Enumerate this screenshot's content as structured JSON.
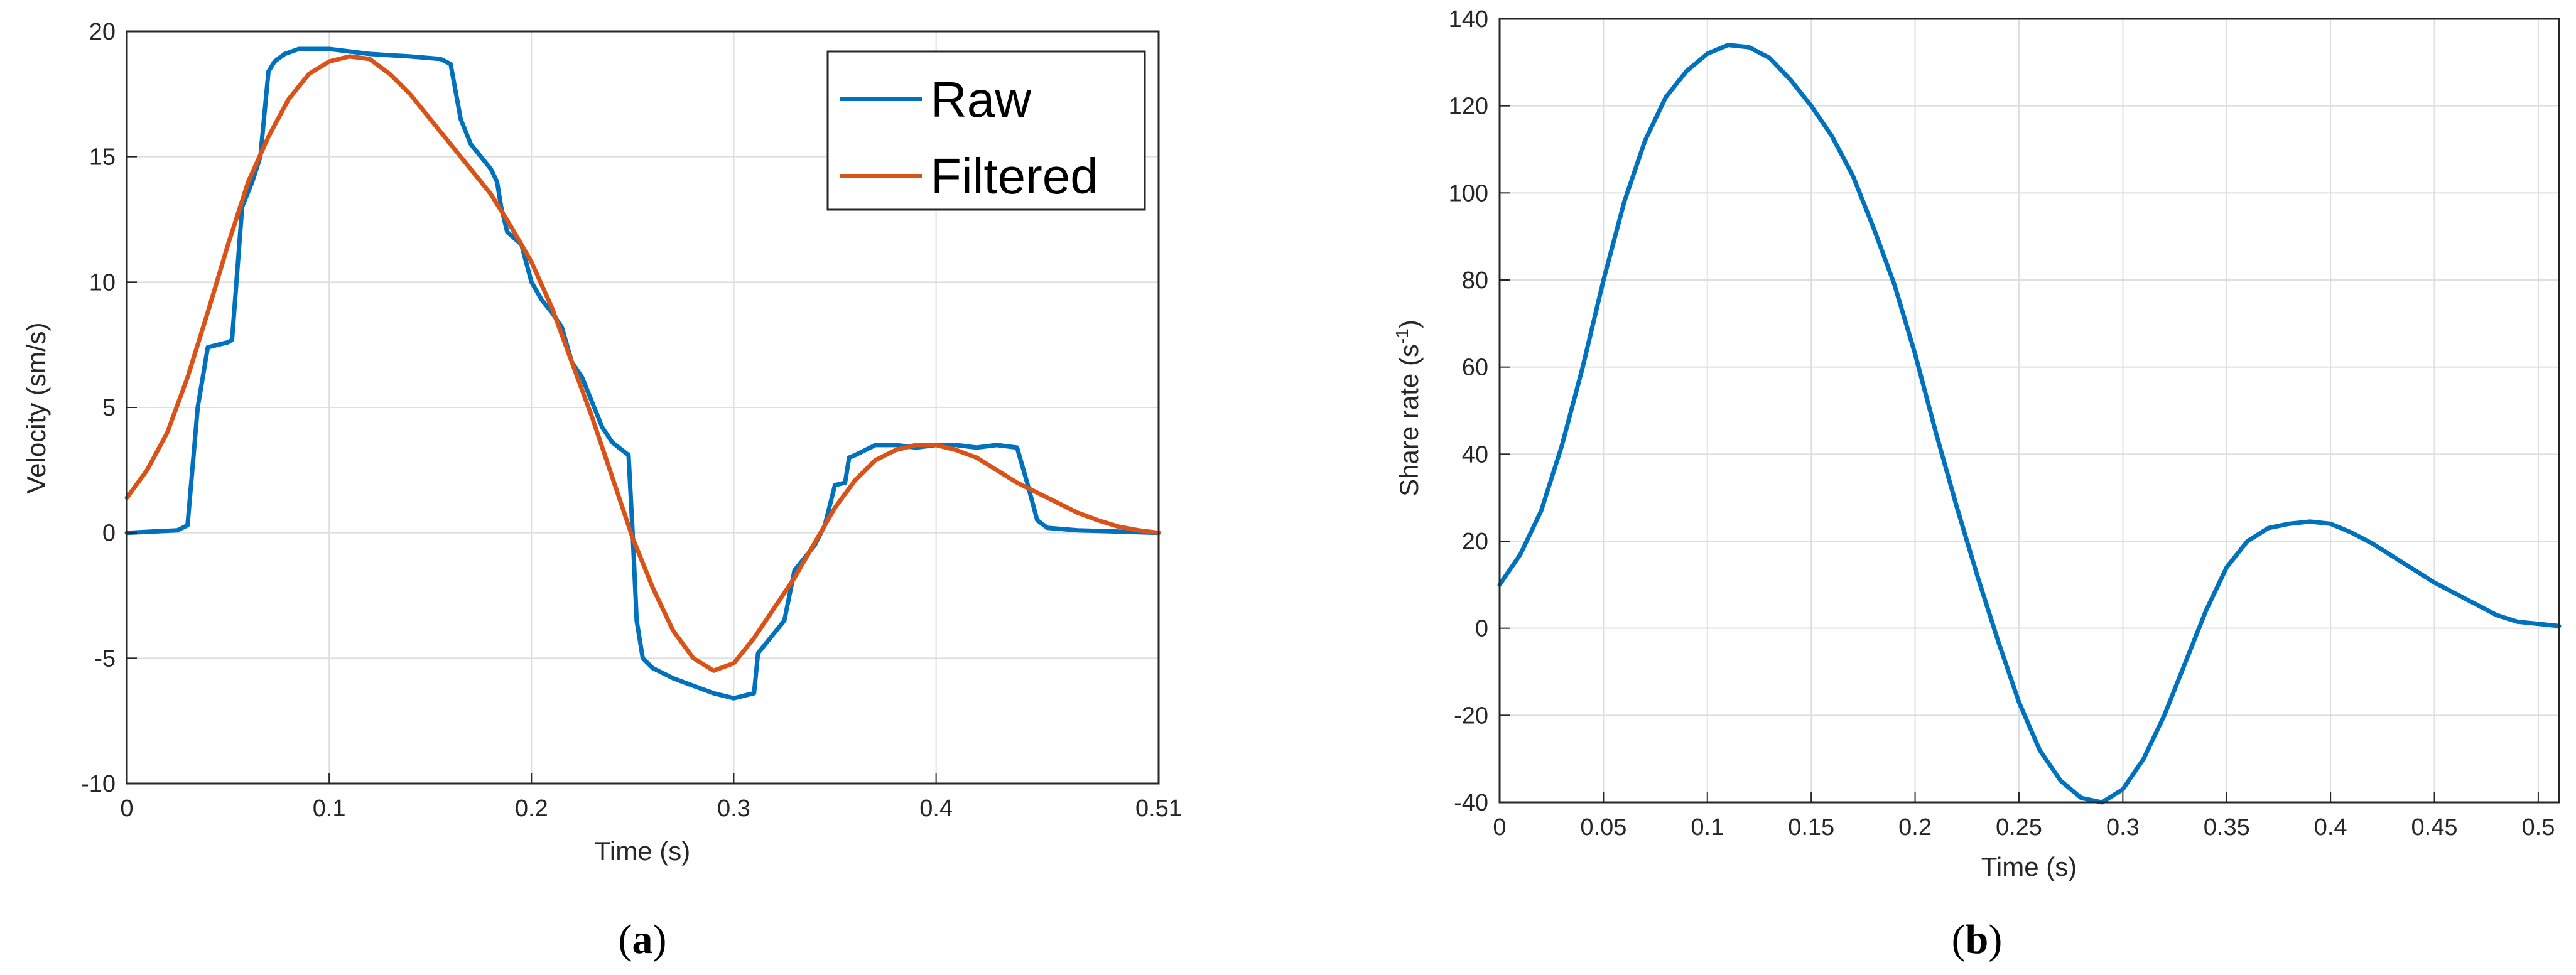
{
  "chart_data": [
    {
      "type": "line",
      "panel": "a",
      "caption_prefix": "(",
      "caption_letter": "a",
      "caption_suffix": ")",
      "title": "",
      "xlabel": "Time (s)",
      "ylabel": "Velocity (sm/s)",
      "xlim": [
        0,
        0.51
      ],
      "ylim": [
        -10,
        20
      ],
      "xticks": [
        0,
        0.1,
        0.2,
        0.3,
        0.4,
        0.51
      ],
      "xtick_labels": [
        "0",
        "0.1",
        "0.2",
        "0.3",
        "0.4",
        "0.51"
      ],
      "yticks": [
        -10,
        -5,
        0,
        5,
        10,
        15,
        20
      ],
      "ytick_labels": [
        "-10",
        "-5",
        "0",
        "5",
        "10",
        "15",
        "20"
      ],
      "grid": true,
      "legend_position": "top-right",
      "series": [
        {
          "name": "Raw",
          "color": "#0072BD",
          "points": [
            [
              0,
              0
            ],
            [
              0.025,
              0.1
            ],
            [
              0.03,
              0.3
            ],
            [
              0.035,
              5
            ],
            [
              0.04,
              7.4
            ],
            [
              0.045,
              7.5
            ],
            [
              0.05,
              7.6
            ],
            [
              0.052,
              7.7
            ],
            [
              0.057,
              13
            ],
            [
              0.062,
              14
            ],
            [
              0.066,
              15
            ],
            [
              0.07,
              18.4
            ],
            [
              0.073,
              18.8
            ],
            [
              0.078,
              19.1
            ],
            [
              0.085,
              19.3
            ],
            [
              0.1,
              19.3
            ],
            [
              0.12,
              19.1
            ],
            [
              0.14,
              19
            ],
            [
              0.155,
              18.9
            ],
            [
              0.16,
              18.7
            ],
            [
              0.165,
              16.5
            ],
            [
              0.17,
              15.5
            ],
            [
              0.175,
              15
            ],
            [
              0.18,
              14.5
            ],
            [
              0.183,
              14
            ],
            [
              0.185,
              13
            ],
            [
              0.188,
              12
            ],
            [
              0.195,
              11.5
            ],
            [
              0.2,
              10
            ],
            [
              0.205,
              9.3
            ],
            [
              0.21,
              8.8
            ],
            [
              0.215,
              8.2
            ],
            [
              0.22,
              6.8
            ],
            [
              0.225,
              6.2
            ],
            [
              0.23,
              5.2
            ],
            [
              0.235,
              4.2
            ],
            [
              0.24,
              3.6
            ],
            [
              0.248,
              3.1
            ],
            [
              0.25,
              0
            ],
            [
              0.252,
              -3.5
            ],
            [
              0.255,
              -5
            ],
            [
              0.26,
              -5.4
            ],
            [
              0.27,
              -5.8
            ],
            [
              0.28,
              -6.1
            ],
            [
              0.29,
              -6.4
            ],
            [
              0.3,
              -6.6
            ],
            [
              0.31,
              -6.4
            ],
            [
              0.312,
              -4.8
            ],
            [
              0.32,
              -4
            ],
            [
              0.325,
              -3.5
            ],
            [
              0.33,
              -1.5
            ],
            [
              0.34,
              -0.5
            ],
            [
              0.345,
              0.3
            ],
            [
              0.35,
              1.9
            ],
            [
              0.355,
              2
            ],
            [
              0.357,
              3
            ],
            [
              0.36,
              3.1
            ],
            [
              0.37,
              3.5
            ],
            [
              0.38,
              3.5
            ],
            [
              0.39,
              3.4
            ],
            [
              0.4,
              3.5
            ],
            [
              0.41,
              3.5
            ],
            [
              0.42,
              3.4
            ],
            [
              0.43,
              3.5
            ],
            [
              0.44,
              3.4
            ],
            [
              0.445,
              2
            ],
            [
              0.45,
              0.5
            ],
            [
              0.455,
              0.2
            ],
            [
              0.47,
              0.1
            ],
            [
              0.49,
              0.05
            ],
            [
              0.51,
              0
            ]
          ]
        },
        {
          "name": "Filtered",
          "color": "#D95319",
          "points": [
            [
              0,
              1.4
            ],
            [
              0.01,
              2.5
            ],
            [
              0.02,
              4
            ],
            [
              0.03,
              6.2
            ],
            [
              0.04,
              8.8
            ],
            [
              0.05,
              11.5
            ],
            [
              0.06,
              14
            ],
            [
              0.07,
              15.8
            ],
            [
              0.08,
              17.3
            ],
            [
              0.09,
              18.3
            ],
            [
              0.1,
              18.8
            ],
            [
              0.11,
              19
            ],
            [
              0.12,
              18.9
            ],
            [
              0.13,
              18.3
            ],
            [
              0.14,
              17.5
            ],
            [
              0.15,
              16.5
            ],
            [
              0.16,
              15.5
            ],
            [
              0.17,
              14.5
            ],
            [
              0.18,
              13.5
            ],
            [
              0.19,
              12.2
            ],
            [
              0.2,
              10.8
            ],
            [
              0.21,
              9
            ],
            [
              0.22,
              6.8
            ],
            [
              0.23,
              4.6
            ],
            [
              0.24,
              2.2
            ],
            [
              0.25,
              -0.2
            ],
            [
              0.26,
              -2.2
            ],
            [
              0.27,
              -3.9
            ],
            [
              0.28,
              -5
            ],
            [
              0.29,
              -5.5
            ],
            [
              0.3,
              -5.2
            ],
            [
              0.31,
              -4.2
            ],
            [
              0.32,
              -3
            ],
            [
              0.33,
              -1.8
            ],
            [
              0.34,
              -0.4
            ],
            [
              0.35,
              1
            ],
            [
              0.36,
              2.1
            ],
            [
              0.37,
              2.9
            ],
            [
              0.38,
              3.3
            ],
            [
              0.39,
              3.5
            ],
            [
              0.4,
              3.5
            ],
            [
              0.41,
              3.3
            ],
            [
              0.42,
              3
            ],
            [
              0.43,
              2.5
            ],
            [
              0.44,
              2
            ],
            [
              0.45,
              1.6
            ],
            [
              0.46,
              1.2
            ],
            [
              0.47,
              0.8
            ],
            [
              0.48,
              0.5
            ],
            [
              0.49,
              0.25
            ],
            [
              0.5,
              0.1
            ],
            [
              0.51,
              0
            ]
          ]
        }
      ]
    },
    {
      "type": "line",
      "panel": "b",
      "caption_prefix": "(",
      "caption_letter": "b",
      "caption_suffix": ")",
      "title": "",
      "xlabel": "Time (s)",
      "ylabel_main": "Share rate (s",
      "ylabel_sup": "-1",
      "ylabel_close": ")",
      "xlim": [
        0,
        0.51
      ],
      "ylim": [
        -40,
        140
      ],
      "xticks": [
        0,
        0.05,
        0.1,
        0.15,
        0.2,
        0.25,
        0.3,
        0.35,
        0.4,
        0.45,
        0.5
      ],
      "xtick_labels": [
        "0",
        "0.05",
        "0.1",
        "0.15",
        "0.2",
        "0.25",
        "0.3",
        "0.35",
        "0.4",
        "0.45",
        "0.5"
      ],
      "yticks": [
        -40,
        -20,
        0,
        20,
        40,
        60,
        80,
        100,
        120,
        140
      ],
      "ytick_labels": [
        "-40",
        "-20",
        "0",
        "20",
        "40",
        "60",
        "80",
        "100",
        "120",
        "140"
      ],
      "grid": true,
      "series": [
        {
          "name": "Share rate",
          "color": "#0072BD",
          "points": [
            [
              0,
              10
            ],
            [
              0.01,
              17
            ],
            [
              0.02,
              27
            ],
            [
              0.03,
              42
            ],
            [
              0.04,
              60
            ],
            [
              0.05,
              80
            ],
            [
              0.06,
              98
            ],
            [
              0.07,
              112
            ],
            [
              0.08,
              122
            ],
            [
              0.09,
              128
            ],
            [
              0.1,
              132
            ],
            [
              0.11,
              134
            ],
            [
              0.12,
              133.5
            ],
            [
              0.13,
              131
            ],
            [
              0.14,
              126
            ],
            [
              0.15,
              120
            ],
            [
              0.16,
              113
            ],
            [
              0.17,
              104
            ],
            [
              0.18,
              92
            ],
            [
              0.19,
              79
            ],
            [
              0.2,
              63
            ],
            [
              0.21,
              45
            ],
            [
              0.22,
              28
            ],
            [
              0.23,
              12
            ],
            [
              0.24,
              -3
            ],
            [
              0.25,
              -17
            ],
            [
              0.26,
              -28
            ],
            [
              0.27,
              -35
            ],
            [
              0.28,
              -39
            ],
            [
              0.29,
              -40
            ],
            [
              0.3,
              -37
            ],
            [
              0.31,
              -30
            ],
            [
              0.32,
              -20
            ],
            [
              0.33,
              -8
            ],
            [
              0.34,
              4
            ],
            [
              0.35,
              14
            ],
            [
              0.36,
              20
            ],
            [
              0.37,
              23
            ],
            [
              0.38,
              24
            ],
            [
              0.39,
              24.5
            ],
            [
              0.4,
              24
            ],
            [
              0.41,
              22
            ],
            [
              0.42,
              19.5
            ],
            [
              0.43,
              16.5
            ],
            [
              0.44,
              13.5
            ],
            [
              0.45,
              10.5
            ],
            [
              0.46,
              8
            ],
            [
              0.47,
              5.5
            ],
            [
              0.48,
              3
            ],
            [
              0.49,
              1.5
            ],
            [
              0.5,
              1
            ],
            [
              0.51,
              0.5
            ]
          ]
        }
      ]
    }
  ]
}
